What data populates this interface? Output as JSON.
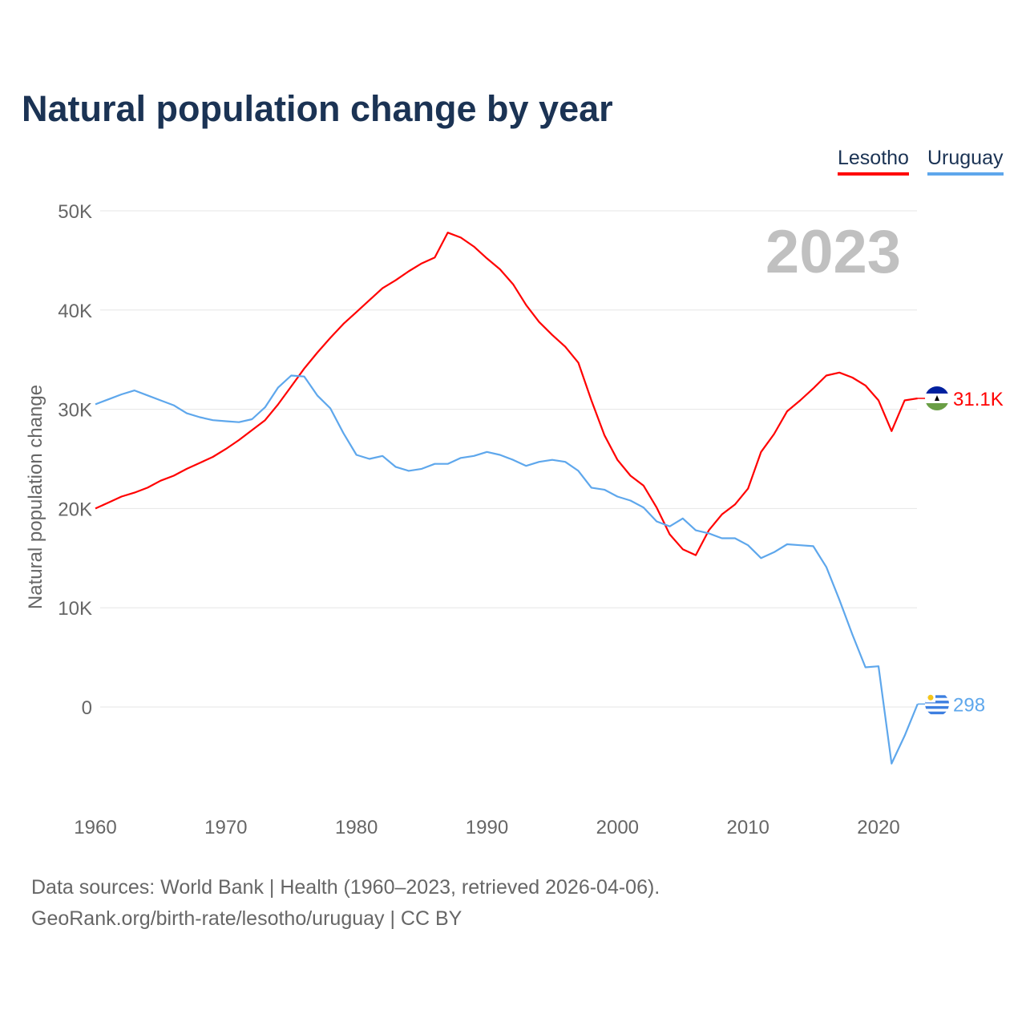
{
  "chart_data": {
    "type": "line",
    "title": "Natural population change by year",
    "xlabel": "",
    "ylabel": "Natural population change",
    "xlim": [
      1960,
      2023
    ],
    "ylim": [
      -8000,
      50000
    ],
    "x_ticks": [
      "1960",
      "1970",
      "1980",
      "1990",
      "2000",
      "2010",
      "2020"
    ],
    "y_ticks": [
      {
        "v": 0,
        "label": "0"
      },
      {
        "v": 10000,
        "label": "10K"
      },
      {
        "v": 20000,
        "label": "20K"
      },
      {
        "v": 30000,
        "label": "30K"
      },
      {
        "v": 40000,
        "label": "40K"
      },
      {
        "v": 50000,
        "label": "50K"
      }
    ],
    "grid": true,
    "year_label": "2023",
    "legend_position": "top-right",
    "x": [
      1960,
      1961,
      1962,
      1963,
      1964,
      1965,
      1966,
      1967,
      1968,
      1969,
      1970,
      1971,
      1972,
      1973,
      1974,
      1975,
      1976,
      1977,
      1978,
      1979,
      1980,
      1981,
      1982,
      1983,
      1984,
      1985,
      1986,
      1987,
      1988,
      1989,
      1990,
      1991,
      1992,
      1993,
      1994,
      1995,
      1996,
      1997,
      1998,
      1999,
      2000,
      2001,
      2002,
      2003,
      2004,
      2005,
      2006,
      2007,
      2008,
      2009,
      2010,
      2011,
      2012,
      2013,
      2014,
      2015,
      2016,
      2017,
      2018,
      2019,
      2020,
      2021,
      2022,
      2023
    ],
    "series": [
      {
        "name": "Lesotho",
        "color": "#ff0000",
        "end_label": "31.1K",
        "values": [
          20000,
          20600,
          21200,
          21600,
          22100,
          22800,
          23300,
          24000,
          24600,
          25200,
          26000,
          26900,
          27900,
          28900,
          30500,
          32300,
          34100,
          35700,
          37200,
          38600,
          39800,
          41000,
          42200,
          43000,
          43900,
          44700,
          45300,
          47800,
          47300,
          46400,
          45200,
          44100,
          42600,
          40500,
          38800,
          37500,
          36300,
          34700,
          30900,
          27400,
          24900,
          23300,
          22300,
          20100,
          17400,
          15900,
          15300,
          17800,
          19400,
          20400,
          22000,
          25700,
          27500,
          29800,
          30900,
          32100,
          33400,
          33700,
          33200,
          32400,
          30900,
          27800,
          30900,
          31100
        ]
      },
      {
        "name": "Uruguay",
        "color": "#5ea7ec",
        "end_label": "298",
        "values": [
          30500,
          31000,
          31500,
          31900,
          31400,
          30900,
          30400,
          29600,
          29200,
          28900,
          28800,
          28700,
          29000,
          30200,
          32200,
          33400,
          33300,
          31400,
          30100,
          27600,
          25400,
          25000,
          25300,
          24200,
          23800,
          24000,
          24500,
          24500,
          25100,
          25300,
          25700,
          25400,
          24900,
          24300,
          24700,
          24900,
          24700,
          23800,
          22100,
          21900,
          21200,
          20800,
          20100,
          18700,
          18200,
          19000,
          17800,
          17500,
          17000,
          17000,
          16300,
          15000,
          15600,
          16400,
          16300,
          16200,
          14100,
          10800,
          7300,
          4000,
          4100,
          -5700,
          -2900,
          298
        ]
      }
    ]
  },
  "footer": {
    "line1": "Data sources: World Bank | Health (1960–2023, retrieved 2026-04-06).",
    "line2": "GeoRank.org/birth-rate/lesotho/uruguay | CC BY"
  }
}
